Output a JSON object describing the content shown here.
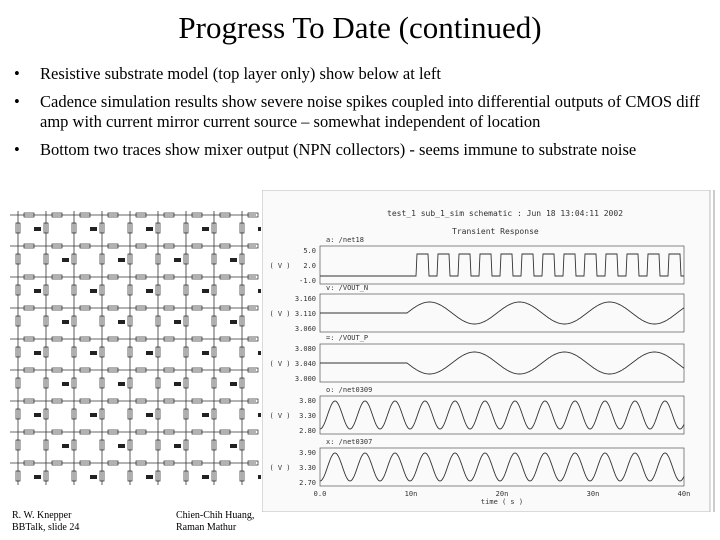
{
  "title": "Progress To Date (continued)",
  "bullets": [
    "Resistive substrate model (top layer only) show below at left",
    "Cadence simulation results show severe noise spikes coupled into differential outputs of CMOS diff amp with current mirror current source – somewhat independent of location",
    "Bottom two traces show mixer output (NPN collectors) - seems immune to substrate noise"
  ],
  "figure": {
    "header": "test_1 sub_1_sim schematic : Jun 18 13:04:11 2002",
    "subtitle": "Transient Response",
    "panels": [
      {
        "name": "a: /net18",
        "unit": "( V )",
        "ticks": [
          "5.0",
          "2.0",
          "-1.0"
        ]
      },
      {
        "name": "v: /VOUT_N",
        "unit": "( V )",
        "ticks": [
          "3.160",
          "3.110",
          "3.060"
        ]
      },
      {
        "name": "=: /VOUT_P",
        "unit": "( V )",
        "ticks": [
          "3.080",
          "3.040",
          "3.000"
        ]
      },
      {
        "name": "o: /net0309",
        "unit": "( V )",
        "ticks": [
          "3.80",
          "3.30",
          "2.80"
        ]
      },
      {
        "name": "x: /net0307",
        "unit": "( V )",
        "ticks": [
          "3.90",
          "3.30",
          "2.70"
        ]
      }
    ],
    "xticks": [
      "0.0",
      "10n",
      "20n",
      "30n",
      "40n"
    ],
    "xlabel": "time ( s )"
  },
  "footer": {
    "left": [
      "R. W. Knepper",
      "BBTalk, slide 24"
    ],
    "center": [
      "Chien-Chih Huang,",
      "Raman Mathur"
    ]
  }
}
